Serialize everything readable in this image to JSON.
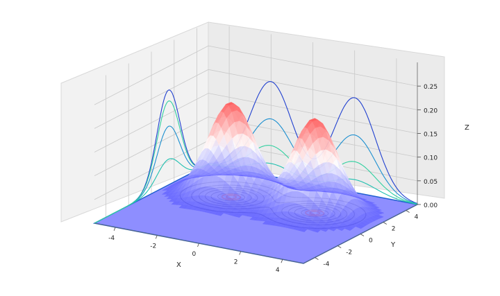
{
  "chart_data": {
    "type": "surface3d",
    "title": "",
    "xlabel": "X",
    "ylabel": "Y",
    "zlabel": "Z",
    "xticks": [
      "-4",
      "-2",
      "0",
      "2",
      "4"
    ],
    "yticks": [
      "-4",
      "-2",
      "0",
      "2",
      "4"
    ],
    "zticks": [
      "0.00",
      "0.05",
      "0.10",
      "0.15",
      "0.20",
      "0.25"
    ],
    "xlim": [
      -5,
      5
    ],
    "ylim": [
      -5,
      5
    ],
    "zlim": [
      0,
      0.3
    ],
    "grid": true,
    "surface": {
      "function": "sum of two 2D gaussian peaks",
      "peaks": [
        {
          "cx": -2,
          "cy": 1.5,
          "amplitude": 0.2
        },
        {
          "cx": 2,
          "cy": 1.5,
          "amplitude": 0.2
        }
      ],
      "colormap": "bwr",
      "contour_offset_z": 0,
      "projection_walls": [
        "x-wall",
        "y-wall"
      ]
    },
    "colors": {
      "pane": "#f2f2f2",
      "grid": "#c8c8c8",
      "floor": "#7a7aff",
      "contour": "#3b3bb8",
      "contour_inner": "#c0386a",
      "wall_lines": [
        "#2040d0",
        "#1b8fd0",
        "#20c0b0",
        "#30d0a0"
      ]
    }
  }
}
